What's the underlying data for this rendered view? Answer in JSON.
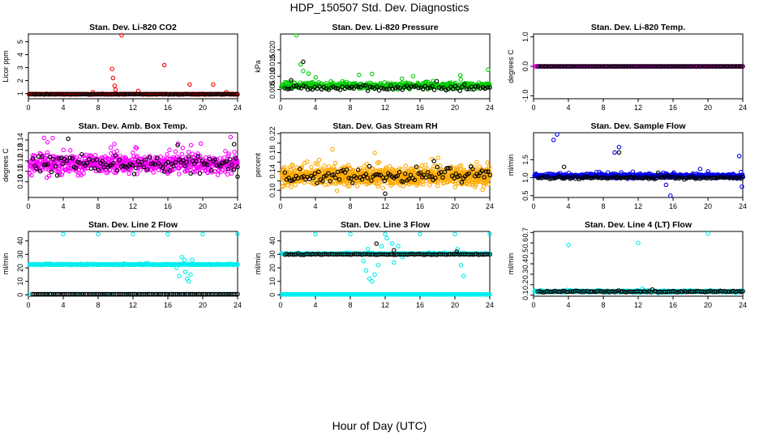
{
  "figure": {
    "title": "HDP_150507  Std. Dev. Diagnostics",
    "xlabel": "Hour of Day (UTC)"
  },
  "chart_data": [
    {
      "type": "scatter",
      "title": "Stan. Dev. Li-820 CO2",
      "ylabel": "Licor ppm",
      "xlim": [
        0,
        24
      ],
      "ylim": [
        0.6,
        5.6
      ],
      "xticks": [
        0,
        4,
        8,
        12,
        16,
        20,
        24
      ],
      "yticks": [
        1,
        2,
        3,
        4,
        5
      ],
      "ytick_labels": [
        "1",
        "2",
        "3",
        "4",
        "5"
      ],
      "series": [
        {
          "color": "#ff0000",
          "x_range": [
            0.1,
            24
          ],
          "base": 0.95,
          "spread": 0.05,
          "n": 280,
          "extras": [
            [
              9.6,
              2.9
            ],
            [
              9.7,
              2.2
            ],
            [
              9.9,
              1.6
            ],
            [
              10.0,
              1.3
            ],
            [
              10.7,
              5.5
            ],
            [
              15.6,
              3.2
            ],
            [
              18.5,
              1.7
            ],
            [
              21.2,
              1.7
            ],
            [
              12.6,
              1.2
            ],
            [
              7.4,
              1.1
            ],
            [
              22.7,
              1.1
            ]
          ]
        },
        {
          "color": "#000000",
          "x_range": [
            0.1,
            24
          ],
          "base": 0.95,
          "spread": 0.03,
          "n": 110,
          "extras": []
        }
      ]
    },
    {
      "type": "scatter",
      "title": "Stan. Dev. Li-820 Pressure",
      "ylabel": "kPa",
      "xlim": [
        0,
        24
      ],
      "ylim": [
        0.0015,
        0.026
      ],
      "xticks": [
        0,
        4,
        8,
        12,
        16,
        20,
        24
      ],
      "yticks": [
        0.005,
        0.01,
        0.015,
        0.02
      ],
      "ytick_labels": [
        "0.005",
        "0.010",
        "0.015",
        "0.020"
      ],
      "series": [
        {
          "color": "#00cc00",
          "x_range": [
            0.1,
            24
          ],
          "base": 0.0065,
          "spread": 0.0025,
          "n": 420,
          "extras": [
            [
              1.8,
              0.0255
            ],
            [
              2.3,
              0.0145
            ],
            [
              2.6,
              0.012
            ],
            [
              3.2,
              0.011
            ],
            [
              23.8,
              0.0125
            ],
            [
              9.0,
              0.0105
            ],
            [
              15.2,
              0.01
            ]
          ]
        },
        {
          "color": "#000000",
          "x_range": [
            0.5,
            24
          ],
          "base": 0.0055,
          "spread": 0.0018,
          "n": 90,
          "extras": [
            [
              2.6,
              0.0155
            ],
            [
              1.2,
              0.0085
            ]
          ]
        }
      ]
    },
    {
      "type": "scatter",
      "title": "Stan. Dev. Li-820 Temp.",
      "ylabel": "degrees C",
      "xlim": [
        0,
        24
      ],
      "ylim": [
        -1.1,
        1.1
      ],
      "xticks": [
        0,
        4,
        8,
        12,
        16,
        20,
        24
      ],
      "yticks": [
        -1.0,
        0.0,
        1.0
      ],
      "ytick_labels": [
        "-1.0",
        "0.0",
        "1.0"
      ],
      "series": [
        {
          "color": "#ff00ff",
          "x_range": [
            0.1,
            24
          ],
          "base": 0.0,
          "spread": 0.0,
          "n": 240,
          "extras": []
        },
        {
          "color": "#000000",
          "x_range": [
            0.5,
            24
          ],
          "base": 0.0,
          "spread": 0.0,
          "n": 100,
          "extras": []
        }
      ]
    },
    {
      "type": "scatter",
      "title": "Stan. Dev. Amb. Box Temp.",
      "ylabel": "degrees C",
      "xlim": [
        0,
        24
      ],
      "ylim": [
        0.085,
        0.147
      ],
      "xticks": [
        0,
        4,
        8,
        12,
        16,
        20,
        24
      ],
      "yticks": [
        0.1,
        0.11,
        0.12,
        0.13,
        0.14
      ],
      "ytick_labels": [
        "0.10",
        "0.11",
        "0.12",
        "0.13",
        "0.14"
      ],
      "series": [
        {
          "color": "#ff00ff",
          "x_range": [
            0.1,
            24
          ],
          "base": 0.117,
          "spread": 0.018,
          "n": 700,
          "extras": []
        },
        {
          "color": "#000000",
          "x_range": [
            0.5,
            24
          ],
          "base": 0.117,
          "spread": 0.016,
          "n": 110,
          "extras": [
            [
              24.0,
              0.105
            ],
            [
              23.6,
              0.136
            ]
          ]
        }
      ]
    },
    {
      "type": "scatter",
      "title": "Stan. Dev. Gas Stream RH",
      "ylabel": "percent",
      "xlim": [
        0,
        24
      ],
      "ylim": [
        0.085,
        0.222
      ],
      "xticks": [
        0,
        4,
        8,
        12,
        16,
        20,
        24
      ],
      "yticks": [
        0.1,
        0.12,
        0.14,
        0.16,
        0.18,
        0.2,
        0.22
      ],
      "ytick_labels": [
        "0.10",
        "",
        "0.14",
        "",
        "0.18",
        "",
        "0.22"
      ],
      "series": [
        {
          "color": "#ffaa00",
          "x_range": [
            0.1,
            24
          ],
          "base": 0.13,
          "spread": 0.04,
          "n": 900,
          "extras": []
        },
        {
          "color": "#000000",
          "x_range": [
            0.5,
            24
          ],
          "base": 0.13,
          "spread": 0.035,
          "n": 110,
          "extras": [
            [
              12.0,
              0.093
            ],
            [
              17.6,
              0.162
            ]
          ]
        }
      ]
    },
    {
      "type": "scatter",
      "title": "Stan. Dev. Sample Flow",
      "ylabel": "ml/min",
      "xlim": [
        0,
        24
      ],
      "ylim": [
        0.45,
        2.25
      ],
      "xticks": [
        0,
        4,
        8,
        12,
        16,
        20,
        24
      ],
      "yticks": [
        0.5,
        1.0,
        1.5
      ],
      "ytick_labels": [
        "0.5",
        "1.0",
        "1.5"
      ],
      "series": [
        {
          "color": "#0000ee",
          "x_range": [
            0.1,
            24
          ],
          "base": 1.05,
          "spread": 0.12,
          "n": 520,
          "extras": [
            [
              2.7,
              2.2
            ],
            [
              2.3,
              2.05
            ],
            [
              9.3,
              1.7
            ],
            [
              9.8,
              1.85
            ],
            [
              15.7,
              0.5
            ],
            [
              15.2,
              0.8
            ],
            [
              23.6,
              1.6
            ],
            [
              23.9,
              0.75
            ]
          ]
        },
        {
          "color": "#000000",
          "x_range": [
            0.5,
            24
          ],
          "base": 1.0,
          "spread": 0.08,
          "n": 110,
          "extras": [
            [
              9.8,
              1.7
            ],
            [
              3.5,
              1.3
            ]
          ]
        }
      ]
    },
    {
      "type": "scatter",
      "title": "Stan. Dev. Line 2 Flow",
      "ylabel": "ml/min",
      "xlim": [
        0,
        24
      ],
      "ylim": [
        -1,
        47
      ],
      "xticks": [
        0,
        4,
        8,
        12,
        16,
        20,
        24
      ],
      "yticks": [
        0,
        10,
        20,
        30,
        40
      ],
      "ytick_labels": [
        "0",
        "10",
        "20",
        "30",
        "40"
      ],
      "series": [
        {
          "color": "#00eeee",
          "x_range": [
            0.1,
            24
          ],
          "base": 22.5,
          "spread": 0.6,
          "n": 520,
          "extras": [
            [
              4.0,
              45
            ],
            [
              8.0,
              45
            ],
            [
              12.0,
              45
            ],
            [
              16.0,
              45
            ],
            [
              20.0,
              45
            ],
            [
              24.0,
              45
            ],
            [
              17.6,
              28
            ],
            [
              17.9,
              26
            ],
            [
              18.0,
              17
            ],
            [
              18.2,
              12
            ],
            [
              18.4,
              10
            ],
            [
              17.3,
              14
            ],
            [
              18.6,
              15
            ],
            [
              17.0,
              20
            ],
            [
              18.8,
              26
            ]
          ]
        },
        {
          "color": "#00eeee",
          "x_range": [
            0.1,
            24
          ],
          "base": 0.5,
          "spread": 0.0,
          "n": 60,
          "extras": []
        },
        {
          "color": "#000000",
          "x_range": [
            0.5,
            24
          ],
          "base": 0.5,
          "spread": 0.0,
          "n": 110,
          "extras": []
        }
      ]
    },
    {
      "type": "scatter",
      "title": "Stan. Dev. Line 3 Flow",
      "ylabel": "ml/min",
      "xlim": [
        0,
        24
      ],
      "ylim": [
        -1,
        47
      ],
      "xticks": [
        0,
        4,
        8,
        12,
        16,
        20,
        24
      ],
      "yticks": [
        0,
        10,
        20,
        30,
        40
      ],
      "ytick_labels": [
        "0",
        "10",
        "20",
        "30",
        "40"
      ],
      "series": [
        {
          "color": "#00eeee",
          "x_range": [
            0.1,
            24
          ],
          "base": 0.4,
          "spread": 0.0,
          "n": 300,
          "extras": [
            [
              4.0,
              45
            ],
            [
              8.0,
              45
            ],
            [
              12.0,
              45
            ],
            [
              16.0,
              45
            ],
            [
              20.0,
              45
            ],
            [
              24.0,
              45
            ],
            [
              9.5,
              25
            ],
            [
              9.8,
              18
            ],
            [
              10.2,
              12
            ],
            [
              10.5,
              10
            ],
            [
              10.8,
              15
            ],
            [
              11.2,
              22
            ],
            [
              11.6,
              36
            ],
            [
              12.2,
              42
            ],
            [
              12.8,
              38
            ],
            [
              13.0,
              24
            ],
            [
              14.0,
              28
            ],
            [
              20.3,
              34
            ],
            [
              20.7,
              22
            ],
            [
              21.0,
              14
            ],
            [
              10.0,
              34
            ],
            [
              13.5,
              36
            ]
          ]
        },
        {
          "color": "#00eeee",
          "x_range": [
            0.1,
            24
          ],
          "base": 30.5,
          "spread": 0.8,
          "n": 260,
          "extras": []
        },
        {
          "color": "#000000",
          "x_range": [
            0.5,
            24
          ],
          "base": 30.0,
          "spread": 0.8,
          "n": 110,
          "extras": [
            [
              11.0,
              38
            ],
            [
              13.0,
              33
            ],
            [
              20.2,
              32
            ]
          ]
        }
      ]
    },
    {
      "type": "scatter",
      "title": "Stan. Dev. Line 4 (LT) Flow",
      "ylabel": "ml/min",
      "xlim": [
        0,
        24
      ],
      "ylim": [
        0.09,
        0.71
      ],
      "xticks": [
        0,
        4,
        8,
        12,
        16,
        20,
        24
      ],
      "yticks": [
        0.1,
        0.2,
        0.3,
        0.4,
        0.5,
        0.6,
        0.7
      ],
      "ytick_labels": [
        "0.1",
        "0.2",
        "0.3",
        "0.4",
        "0.5",
        "0.6",
        "0.7"
      ],
      "series": [
        {
          "color": "#00eeee",
          "x_range": [
            0.1,
            24
          ],
          "base": 0.135,
          "spread": 0.02,
          "n": 360,
          "extras": [
            [
              4.0,
              0.58
            ],
            [
              12.0,
              0.6
            ],
            [
              20.0,
              0.69
            ]
          ]
        },
        {
          "color": "#000000",
          "x_range": [
            0.5,
            24
          ],
          "base": 0.135,
          "spread": 0.015,
          "n": 110,
          "extras": []
        }
      ]
    }
  ]
}
